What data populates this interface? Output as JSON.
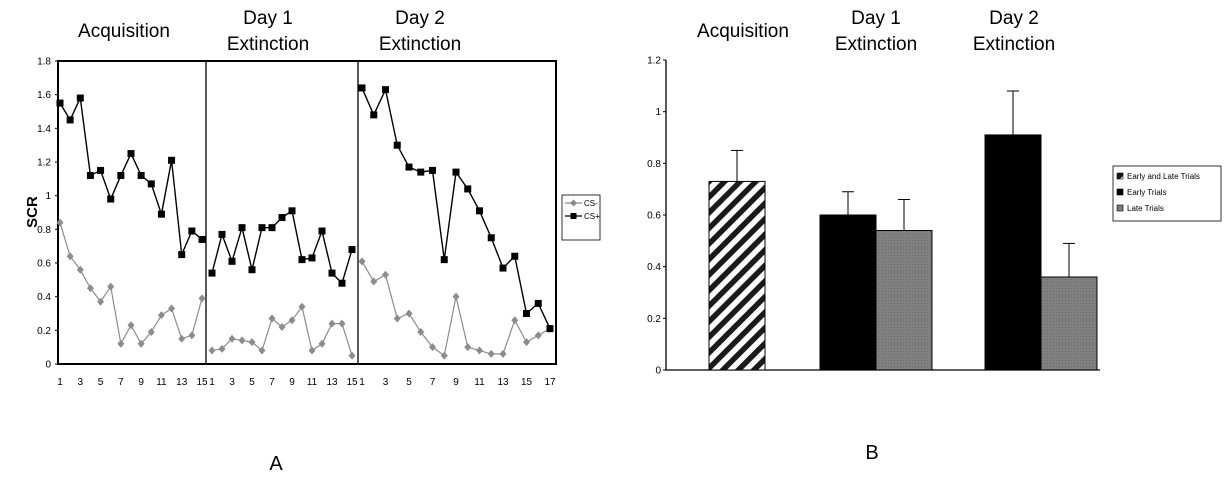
{
  "chart_data": [
    {
      "type": "line",
      "panel_label": "A",
      "ylabel": "SCR",
      "ylim": [
        0,
        1.8
      ],
      "yticks": [
        "0",
        "0.2",
        "0.4",
        "0.6",
        "0.8",
        "1",
        "1.2",
        "1.4",
        "1.6",
        "1.8"
      ],
      "legend": {
        "position": "right",
        "entries": [
          "CS-",
          "CS+"
        ]
      },
      "phases": [
        {
          "title_lines": [
            "Acquisition"
          ],
          "x": [
            1,
            2,
            3,
            4,
            5,
            6,
            7,
            8,
            9,
            10,
            11,
            12,
            13,
            14,
            15
          ],
          "xticks": [
            "1",
            "3",
            "5",
            "7",
            "9",
            "11",
            "13",
            "15"
          ],
          "series": [
            {
              "name": "CS-",
              "marker": "diamond",
              "color": "#8c8c8c",
              "values": [
                0.84,
                0.64,
                0.56,
                0.45,
                0.37,
                0.46,
                0.12,
                0.23,
                0.12,
                0.19,
                0.29,
                0.33,
                0.15,
                0.17,
                0.39
              ],
              "connect": [
                [
                  0,
                  14
                ]
              ]
            },
            {
              "name": "CS+",
              "marker": "square",
              "color": "#000000",
              "values": [
                1.55,
                1.45,
                1.58,
                1.12,
                1.15,
                0.98,
                1.12,
                1.25,
                1.12,
                1.07,
                0.89,
                1.21,
                0.65,
                0.79,
                0.74
              ],
              "connect": [
                [
                  0,
                  14
                ]
              ]
            }
          ]
        },
        {
          "title_lines": [
            "Day 1",
            "Extinction"
          ],
          "x": [
            1,
            2,
            3,
            4,
            5,
            6,
            7,
            8,
            9,
            10,
            11,
            12,
            13,
            14,
            15
          ],
          "xticks": [
            "1",
            "3",
            "5",
            "7",
            "9",
            "11",
            "13",
            "15"
          ],
          "series": [
            {
              "name": "CS-",
              "marker": "diamond",
              "color": "#8c8c8c",
              "values": [
                0.08,
                0.09,
                0.15,
                0.14,
                0.13,
                0.08,
                0.27,
                0.22,
                0.26,
                0.34,
                0.08,
                0.12,
                0.24,
                0.24,
                0.05
              ],
              "connect": [
                [
                  0,
                  14
                ]
              ]
            },
            {
              "name": "CS+",
              "marker": "square",
              "color": "#000000",
              "values": [
                0.54,
                0.77,
                0.61,
                0.81,
                0.56,
                0.81,
                0.81,
                0.87,
                0.91,
                0.62,
                0.63,
                0.79,
                0.54,
                0.48,
                0.68
              ],
              "connect": [
                [
                  0,
                  14
                ]
              ]
            }
          ]
        },
        {
          "title_lines": [
            "Day 2",
            "Extinction"
          ],
          "x": [
            1,
            2,
            3,
            4,
            5,
            6,
            7,
            8,
            9,
            10,
            11,
            12,
            13,
            14,
            15,
            16,
            17
          ],
          "xticks": [
            "1",
            "3",
            "5",
            "7",
            "9",
            "11",
            "13",
            "15",
            "17"
          ],
          "series": [
            {
              "name": "CS-",
              "marker": "diamond",
              "color": "#8c8c8c",
              "values": [
                0.61,
                0.49,
                0.53,
                0.27,
                0.3,
                0.19,
                0.1,
                0.05,
                0.4,
                0.1,
                0.08,
                0.06,
                0.06,
                0.26,
                0.13,
                0.17,
                0.21
              ],
              "connect": [
                [
                  0,
                  16
                ]
              ]
            },
            {
              "name": "CS+",
              "marker": "square",
              "color": "#000000",
              "values": [
                1.64,
                1.48,
                1.63,
                1.3,
                1.17,
                1.14,
                1.15,
                0.62,
                1.14,
                1.04,
                0.91,
                0.75,
                0.57,
                0.64,
                0.3,
                0.36,
                0.21
              ],
              "connect": [
                [
                  0,
                  16
                ]
              ]
            }
          ]
        }
      ]
    },
    {
      "type": "bar",
      "panel_label": "B",
      "ylim": [
        0,
        1.2
      ],
      "yticks": [
        "0",
        "0.2",
        "0.4",
        "0.6",
        "0.8",
        "1",
        "1.2"
      ],
      "legend": {
        "position": "right",
        "entries": [
          "Early and Late Trials",
          "Early Trials",
          "Late Trials"
        ]
      },
      "groups": [
        {
          "title_lines": [
            "Acquisition"
          ],
          "bars": [
            {
              "series": "Early and Late Trials",
              "value": 0.73,
              "error": 0.12
            }
          ]
        },
        {
          "title_lines": [
            "Day 1",
            "Extinction"
          ],
          "bars": [
            {
              "series": "Early Trials",
              "value": 0.6,
              "error": 0.09
            },
            {
              "series": "Late Trials",
              "value": 0.54,
              "error": 0.12
            }
          ]
        },
        {
          "title_lines": [
            "Day 2",
            "Extinction"
          ],
          "bars": [
            {
              "series": "Early Trials",
              "value": 0.91,
              "error": 0.17
            },
            {
              "series": "Late Trials",
              "value": 0.36,
              "error": 0.13
            }
          ]
        }
      ]
    }
  ]
}
